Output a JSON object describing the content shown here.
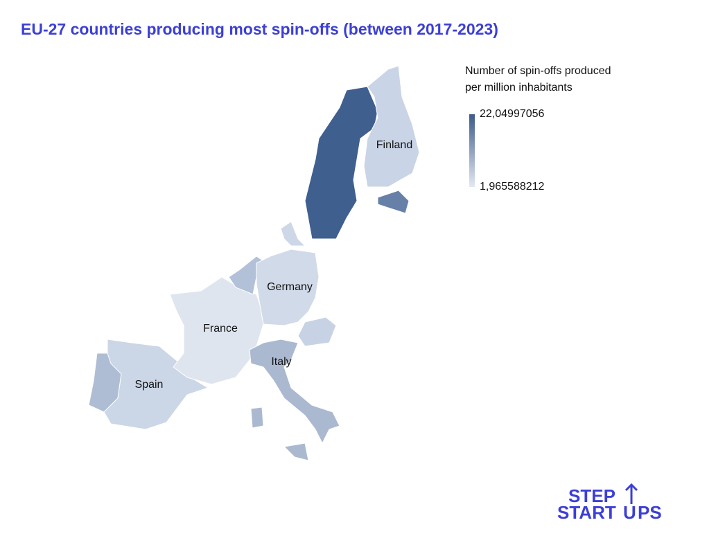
{
  "title": "EU-27 countries producing most spin-offs (between 2017-2023)",
  "legend": {
    "title": [
      "Number of spin-offs produced",
      "per million inhabitants"
    ],
    "max": {
      "value": 22.04997056,
      "label": "22,04997056",
      "color": "#3d5a8a"
    },
    "min": {
      "value": 1.965588212,
      "label": "1,965588212",
      "color": "#e3e9f2"
    }
  },
  "countries": [
    "Finland",
    "Germany",
    "France",
    "Italy",
    "Spain"
  ],
  "logo": [
    "STEP",
    "START",
    "U",
    "PS"
  ]
}
